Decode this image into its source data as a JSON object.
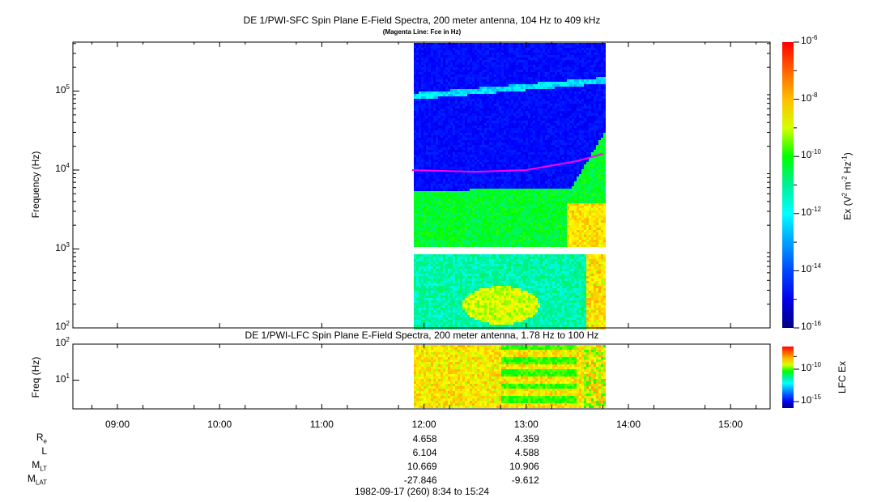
{
  "chart_data": {
    "type": "heatmap",
    "panels": [
      {
        "title": "DE 1/PWI-SFC  Spin Plane E-Field Spectra, 200 meter antenna, 104 Hz to 409 kHz",
        "subtitle": "(Magenta Line: Fce in Hz)",
        "ylabel": "Frequency (Hz)",
        "yscale": "log",
        "ylim": [
          100,
          409000
        ],
        "yticks": [
          {
            "b": "10",
            "e": "2"
          },
          {
            "b": "10",
            "e": "3"
          },
          {
            "b": "10",
            "e": "4"
          },
          {
            "b": "10",
            "e": "5"
          }
        ],
        "colorbar": {
          "label": "Ex (V",
          "label_sup1": "2",
          "label_mid": " m",
          "label_sup2": "-2",
          "label_mid2": " Hz",
          "label_sup3": "-1",
          "label_end": ")",
          "range": [
            1e-16,
            1e-06
          ],
          "ticks": [
            {
              "b": "10",
              "e": "-6"
            },
            {
              "b": "10",
              "e": "-8"
            },
            {
              "b": "10",
              "e": "-10"
            },
            {
              "b": "10",
              "e": "-12"
            },
            {
              "b": "10",
              "e": "-14"
            },
            {
              "b": "10",
              "e": "-16"
            }
          ]
        },
        "data_coverage": [
          "11:53",
          "13:45"
        ],
        "fce_line": [
          {
            "t": "11:53",
            "f": 10000
          },
          {
            "t": "12:30",
            "f": 9500
          },
          {
            "t": "13:00",
            "f": 10000
          },
          {
            "t": "13:30",
            "f": 13000
          },
          {
            "t": "13:45",
            "f": 16000
          }
        ]
      },
      {
        "title": "DE 1/PWI-LFC  Spin Plane E-Field Spectra, 200 meter antenna, 1.78 Hz to 100 Hz",
        "ylabel": "Freq (Hz)",
        "yscale": "log",
        "ylim": [
          1.78,
          100
        ],
        "yticks": [
          {
            "b": "10",
            "e": "2"
          },
          {
            "b": "10",
            "e": "1"
          }
        ],
        "colorbar": {
          "label": "LFC Ex",
          "ticks": [
            {
              "b": "10",
              "e": "-10"
            },
            {
              "b": "10",
              "e": "-15"
            }
          ]
        }
      }
    ],
    "xticks": [
      "09:00",
      "10:00",
      "11:00",
      "12:00",
      "13:00",
      "14:00",
      "15:00"
    ],
    "xlim": [
      "08:34",
      "15:24"
    ],
    "ephemeris": {
      "labels": [
        {
          "m": "R",
          "s": "e"
        },
        {
          "m": "L",
          "s": ""
        },
        {
          "m": "M",
          "s": "LT"
        },
        {
          "m": "M",
          "s": "LAT"
        }
      ],
      "columns": [
        {
          "time": "12:00",
          "values": [
            "4.658",
            "6.104",
            "10.669",
            "-27.846"
          ]
        },
        {
          "time": "13:00",
          "values": [
            "4.359",
            "4.588",
            "10.906",
            "-9.612"
          ]
        }
      ]
    },
    "footer": "1982-09-17 (260) 8:34 to 15:24"
  }
}
